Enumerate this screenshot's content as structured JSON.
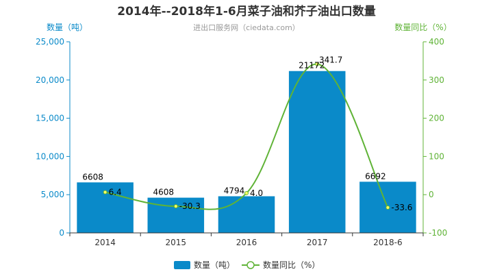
{
  "chart_data": {
    "type": "bar",
    "title": "2014年--2018年1-6月菜子油和芥子油出口数量",
    "subtitle": "进出口服务网（ciedata.com）",
    "ylabel_left": "数量（吨）",
    "ylabel_right": "数量同比（%）",
    "categories": [
      "2014",
      "2015",
      "2016",
      "2017",
      "2018-6"
    ],
    "series": [
      {
        "name": "数量（吨）",
        "type": "bar",
        "axis": "left",
        "color": "#0a8ac9",
        "values": [
          6608,
          4608,
          4794,
          21172,
          6692
        ],
        "labels": [
          "6608",
          "4608",
          "4794",
          "21172",
          "6692"
        ]
      },
      {
        "name": "数量同比（%）",
        "type": "line",
        "axis": "right",
        "color": "#5fb336",
        "values": [
          6.4,
          -30.3,
          4.0,
          341.7,
          -33.6
        ],
        "labels": [
          "6.4",
          "-30.3",
          "4.0",
          "341.7",
          "-33.6"
        ]
      }
    ],
    "ylim_left": [
      0,
      25000
    ],
    "yticks_left": [
      "0",
      "5,000",
      "10,000",
      "15,000",
      "20,000",
      "25,000"
    ],
    "ylim_right": [
      -100,
      400
    ],
    "yticks_right": [
      "-100",
      "0",
      "100",
      "200",
      "300",
      "400"
    ],
    "legend_position": "bottom",
    "grid": false,
    "colors": {
      "left_axis": "#0a8ac9",
      "right_axis": "#5fb336",
      "text": "#000000",
      "subtitle": "#999999"
    }
  }
}
